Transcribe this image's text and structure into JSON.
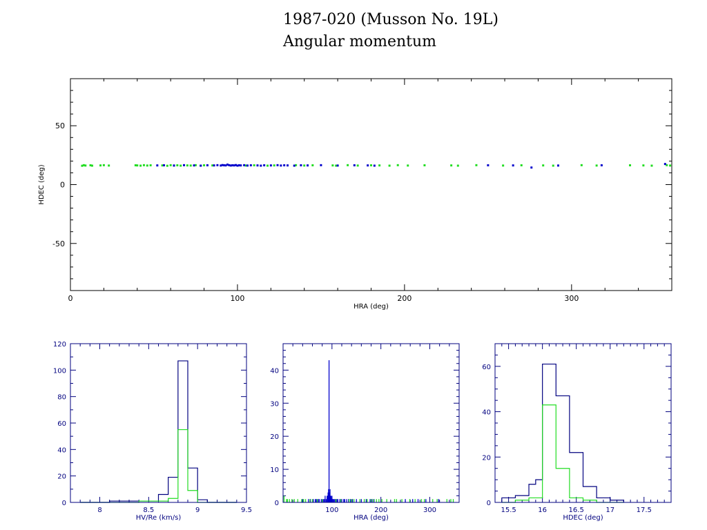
{
  "page": {
    "title_line1": "1987-020 (Musson No. 19L)",
    "title_line2": "Angular momentum"
  },
  "colors": {
    "series_a": "#0000cc",
    "series_b": "#22dd22",
    "axis_main": "#000000",
    "axis_hist": "#00007f"
  },
  "chart_data": [
    {
      "type": "scatter",
      "xlabel": "HRA (deg)",
      "ylabel": "HDEC (deg)",
      "xlim": [
        0,
        360
      ],
      "ylim": [
        -90,
        90
      ],
      "xticks": [
        0,
        100,
        200,
        300
      ],
      "yticks": [
        -50,
        0,
        50
      ],
      "series": [
        {
          "color": "#22dd22",
          "x": [
            7,
            8,
            9,
            12,
            13,
            18,
            20,
            23,
            39,
            40,
            42,
            44,
            46,
            48,
            55,
            58,
            60,
            62,
            64,
            66,
            70,
            72,
            75,
            78,
            80,
            85,
            105,
            110,
            118,
            122,
            135,
            140,
            145,
            157,
            159,
            166,
            172,
            180,
            185,
            191,
            196,
            202,
            212,
            228,
            232,
            243,
            259,
            270,
            283,
            289,
            306,
            315,
            335,
            343,
            348,
            357,
            359
          ],
          "y": [
            16,
            16.5,
            16.2,
            16.4,
            16.1,
            16.3,
            16.5,
            16.2,
            16.4,
            16.3,
            16.1,
            16.5,
            16.2,
            16.4,
            16.3,
            16,
            16.5,
            16.2,
            16.4,
            16.1,
            16.3,
            16.2,
            16.5,
            16.1,
            16.4,
            16.3,
            16.2,
            16.4,
            16.1,
            16.3,
            16.5,
            16.2,
            16.4,
            16.3,
            16.1,
            16.5,
            16.2,
            16.4,
            16.3,
            16.1,
            16.5,
            16.2,
            16.4,
            16.3,
            16.1,
            16.5,
            16.2,
            16.4,
            16.3,
            16.1,
            16.5,
            16.2,
            16.4,
            16.3,
            16.1,
            16.5,
            16.2
          ]
        },
        {
          "color": "#0000cc",
          "x": [
            52,
            56,
            62,
            68,
            74,
            78,
            82,
            86,
            88,
            90,
            91,
            92,
            93,
            94,
            95,
            96,
            97,
            98,
            99,
            100,
            101,
            102,
            104,
            106,
            108,
            112,
            114,
            116,
            120,
            124,
            126,
            128,
            130,
            134,
            138,
            142,
            150,
            160,
            170,
            178,
            182,
            250,
            265,
            276,
            292,
            318,
            356
          ],
          "y": [
            16.3,
            16.4,
            16.2,
            16.5,
            16.3,
            16.1,
            16.4,
            16.3,
            16.5,
            16.2,
            16.6,
            16.4,
            16.3,
            17,
            16.5,
            16.2,
            16.4,
            16.3,
            16.6,
            16.1,
            16.4,
            16.3,
            16.5,
            16.2,
            16.4,
            16.3,
            16.1,
            16.4,
            16.3,
            16.5,
            16.2,
            16.4,
            16.3,
            16.1,
            16.4,
            16.3,
            16.5,
            16.2,
            16.4,
            16.3,
            16.1,
            16.4,
            16.3,
            14.5,
            16.2,
            16.4,
            17.5
          ]
        }
      ]
    },
    {
      "type": "histogram",
      "xlabel": "HV/Re (km/s)",
      "xlim": [
        7.7,
        9.5
      ],
      "ylim": [
        0,
        120
      ],
      "xticks": [
        8,
        8.5,
        9,
        9.5
      ],
      "xtick_labels": [
        "8",
        "8.5",
        "9",
        "9.5"
      ],
      "yticks": [
        0,
        20,
        40,
        60,
        80,
        100,
        120
      ],
      "bin_edges": [
        7.8,
        7.9,
        8.0,
        8.1,
        8.2,
        8.3,
        8.4,
        8.5,
        8.6,
        8.7,
        8.8,
        8.9,
        9.0,
        9.1,
        9.2,
        9.3,
        9.4
      ],
      "series": [
        {
          "color": "#00007f",
          "values": [
            0,
            0,
            0,
            1,
            1,
            1,
            1,
            1,
            6,
            19,
            107,
            26,
            2,
            0,
            0,
            0
          ]
        },
        {
          "color": "#22dd22",
          "values": [
            0,
            0,
            0,
            0,
            0,
            0,
            1,
            1,
            1,
            3,
            55,
            9,
            0,
            0,
            0,
            0
          ]
        }
      ]
    },
    {
      "type": "histogram",
      "xlabel": "HRA (deg)",
      "xlim": [
        0,
        360
      ],
      "ylim": [
        0,
        48
      ],
      "xticks": [
        100,
        200,
        300
      ],
      "xtick_labels": [
        "100",
        "200",
        "300"
      ],
      "yticks": [
        0,
        10,
        20,
        30,
        40
      ],
      "spikes": [
        {
          "color": "#0000cc",
          "x": [
            40,
            52,
            56,
            62,
            66,
            68,
            72,
            74,
            78,
            82,
            84,
            86,
            88,
            90,
            91,
            92,
            93,
            94,
            95,
            96,
            97,
            98,
            99,
            100,
            101,
            102,
            104,
            106,
            108,
            110,
            112,
            116,
            120,
            124,
            126,
            130,
            134,
            138,
            142,
            150,
            160,
            170,
            178,
            182,
            186,
            250,
            265,
            276,
            292,
            318
          ],
          "values": [
            1,
            1,
            1,
            1,
            1,
            1,
            1,
            1,
            1,
            1,
            1,
            2,
            1,
            2,
            2,
            3,
            4,
            43,
            3,
            4,
            2,
            2,
            1,
            2,
            1,
            1,
            1,
            1,
            1,
            1,
            1,
            1,
            1,
            1,
            1,
            1,
            1,
            1,
            1,
            1,
            1,
            1,
            1,
            1,
            1,
            1,
            1,
            1,
            1,
            1
          ]
        },
        {
          "color": "#22dd22",
          "x": [
            2,
            7,
            9,
            13,
            18,
            23,
            30,
            38,
            42,
            46,
            55,
            60,
            70,
            80,
            108,
            118,
            135,
            140,
            145,
            157,
            166,
            172,
            180,
            185,
            191,
            196,
            202,
            212,
            228,
            232,
            243,
            259,
            270,
            283,
            289,
            306,
            315,
            335,
            343,
            348
          ],
          "values": [
            2,
            1,
            1,
            1,
            1,
            1,
            1,
            1,
            1,
            1,
            1,
            1,
            1,
            1,
            1,
            1,
            1,
            1,
            1,
            1,
            1,
            1,
            1,
            1,
            1,
            1,
            1,
            1,
            1,
            1,
            1,
            1,
            1,
            1,
            1,
            1,
            1,
            1,
            1,
            1
          ]
        }
      ]
    },
    {
      "type": "histogram",
      "xlabel": "HDEC (deg)",
      "xlim": [
        15.3,
        17.9
      ],
      "ylim": [
        0,
        70
      ],
      "xticks": [
        15.5,
        16,
        16.5,
        17,
        17.5
      ],
      "xtick_labels": [
        "15.5",
        "16",
        "16.5",
        "17",
        "17.5"
      ],
      "yticks": [
        0,
        20,
        40,
        60
      ],
      "bin_edges": [
        15.4,
        15.6,
        15.8,
        15.9,
        16.0,
        16.2,
        16.4,
        16.6,
        16.8,
        17.0,
        17.2
      ],
      "series": [
        {
          "color": "#00007f",
          "values": [
            2,
            3,
            8,
            10,
            61,
            47,
            22,
            7,
            2,
            1
          ]
        },
        {
          "color": "#22dd22",
          "values": [
            0,
            1,
            2,
            2,
            43,
            15,
            2,
            1,
            0,
            0
          ]
        }
      ]
    }
  ]
}
